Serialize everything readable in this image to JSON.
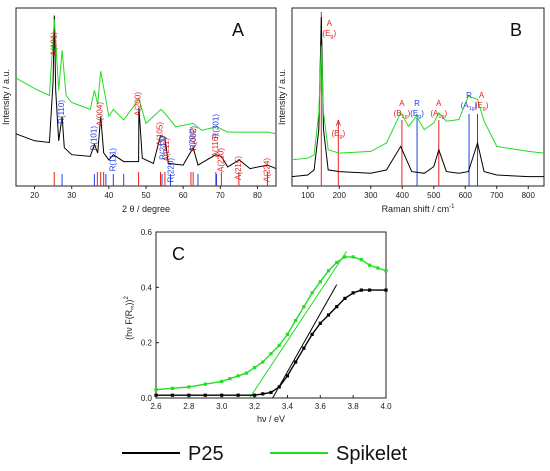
{
  "colors": {
    "p25": "#000000",
    "spikelet": "#22dd22",
    "anatase": "#e8201b",
    "rutile": "#1f3fe0",
    "fit": "#22dd22"
  },
  "legend": [
    {
      "label": "P25",
      "color": "#000000"
    },
    {
      "label": "Spikelet",
      "color": "#22dd22"
    }
  ],
  "chart_data": [
    {
      "type": "line",
      "panel": "A",
      "xlabel": "2 θ / degree",
      "ylabel": "Intensity / a.u.",
      "xlim": [
        15,
        85
      ],
      "xticks": [
        20,
        30,
        40,
        50,
        60,
        70,
        80
      ],
      "series": [
        {
          "name": "P25",
          "x": [
            15,
            20,
            24,
            25.0,
            25.3,
            25.7,
            26.5,
            27.4,
            28,
            30,
            35,
            36.1,
            37,
            37.8,
            38.6,
            40,
            41.2,
            44,
            48,
            48.1,
            49,
            52,
            53.9,
            55.1,
            56,
            60,
            62.7,
            64,
            68.8,
            70.3,
            72,
            75.1,
            78,
            82.7,
            85
          ],
          "y": [
            0.3,
            0.26,
            0.25,
            0.6,
            0.98,
            0.55,
            0.26,
            0.4,
            0.22,
            0.18,
            0.17,
            0.24,
            0.19,
            0.4,
            0.19,
            0.15,
            0.18,
            0.14,
            0.14,
            0.45,
            0.16,
            0.13,
            0.29,
            0.28,
            0.13,
            0.12,
            0.22,
            0.12,
            0.18,
            0.17,
            0.11,
            0.15,
            0.1,
            0.12,
            0.1
          ]
        },
        {
          "name": "Spikelet",
          "x": [
            15,
            20,
            24,
            25.3,
            26.5,
            27.4,
            28.5,
            30,
            35,
            36.1,
            37,
            37.8,
            40,
            41.2,
            44,
            48.1,
            50,
            54,
            55,
            58,
            62.7,
            65,
            69,
            72,
            75,
            82.7,
            85
          ],
          "y": [
            0.62,
            0.56,
            0.52,
            0.96,
            0.55,
            0.78,
            0.52,
            0.48,
            0.44,
            0.55,
            0.47,
            0.66,
            0.4,
            0.44,
            0.38,
            0.5,
            0.36,
            0.44,
            0.42,
            0.34,
            0.36,
            0.32,
            0.34,
            0.31,
            0.31,
            0.31,
            0.3
          ]
        }
      ],
      "ref_lines": {
        "anatase": [
          25.3,
          36.9,
          37.8,
          38.6,
          48.0,
          53.9,
          55.1,
          62.1,
          62.7,
          68.8,
          70.3,
          75.0,
          82.7
        ],
        "rutile": [
          27.4,
          36.1,
          39.2,
          41.2,
          44.0,
          54.3,
          56.6,
          64.0,
          69.0
        ]
      },
      "peak_labels": [
        {
          "text": "A(101)",
          "x": 25.3,
          "phase": "anatase"
        },
        {
          "text": "R(110)",
          "x": 27.4,
          "phase": "rutile"
        },
        {
          "text": "R(101)",
          "x": 36.1,
          "phase": "rutile"
        },
        {
          "text": "A(004)",
          "x": 37.8,
          "phase": "anatase"
        },
        {
          "text": "R(111)",
          "x": 41.2,
          "phase": "rutile"
        },
        {
          "text": "A(200)",
          "x": 48.0,
          "phase": "anatase"
        },
        {
          "text": "A(105)",
          "x": 53.9,
          "phase": "anatase"
        },
        {
          "text": "R(211)",
          "x": 54.7,
          "phase": "rutile"
        },
        {
          "text": "A(211)",
          "x": 55.6,
          "phase": "anatase"
        },
        {
          "text": "R(220)",
          "x": 56.8,
          "phase": "rutile"
        },
        {
          "text": "A(204)",
          "x": 62.7,
          "phase": "anatase"
        },
        {
          "text": "R(002)",
          "x": 62.9,
          "phase": "rutile"
        },
        {
          "text": "R(301)",
          "x": 69.0,
          "phase": "rutile"
        },
        {
          "text": "A(116)",
          "x": 68.8,
          "phase": "anatase"
        },
        {
          "text": "A(220)",
          "x": 70.3,
          "phase": "anatase"
        },
        {
          "text": "A(215)",
          "x": 75.0,
          "phase": "anatase"
        },
        {
          "text": "A(224)",
          "x": 82.7,
          "phase": "anatase"
        }
      ]
    },
    {
      "type": "line",
      "panel": "B",
      "xlabel": "Raman shift / cm",
      "xlabel_sup": "-1",
      "ylabel": "Intensity / a.u.",
      "xlim": [
        50,
        850
      ],
      "xticks": [
        100,
        200,
        300,
        400,
        500,
        600,
        700,
        800
      ],
      "series": [
        {
          "name": "P25",
          "x": [
            50,
            100,
            120,
            135,
            143,
            150,
            165,
            200,
            300,
            350,
            395,
            430,
            470,
            500,
            516,
            540,
            580,
            610,
            639,
            660,
            700,
            800,
            850
          ],
          "y": [
            0.02,
            0.03,
            0.06,
            0.3,
            0.97,
            0.3,
            0.06,
            0.05,
            0.04,
            0.06,
            0.2,
            0.05,
            0.04,
            0.08,
            0.18,
            0.05,
            0.04,
            0.05,
            0.22,
            0.05,
            0.03,
            0.02,
            0.02
          ]
        },
        {
          "name": "Spikelet",
          "x": [
            50,
            100,
            120,
            135,
            143,
            150,
            165,
            200,
            300,
            350,
            395,
            420,
            445,
            470,
            500,
            516,
            540,
            580,
            610,
            639,
            660,
            700,
            800,
            850
          ],
          "y": [
            0.12,
            0.13,
            0.15,
            0.4,
            0.8,
            0.4,
            0.18,
            0.16,
            0.17,
            0.22,
            0.4,
            0.32,
            0.38,
            0.3,
            0.34,
            0.4,
            0.35,
            0.36,
            0.5,
            0.48,
            0.35,
            0.2,
            0.17,
            0.16
          ]
        }
      ],
      "ref_lines": {
        "anatase": [
          143,
          197,
          399,
          516
        ],
        "rutile": [
          447,
          612,
          639
        ]
      },
      "peak_labels": [
        {
          "line1": "A",
          "line2": "(E",
          "sub": "g",
          "x": 143,
          "phase": "anatase"
        },
        {
          "line1": "A",
          "line2": "(E",
          "sub": "g",
          "x": 197,
          "phase": "anatase"
        },
        {
          "line1": "A",
          "line2": "(B",
          "sub": "1g",
          "x": 399,
          "phase": "anatase"
        },
        {
          "line1": "R",
          "line2": "(E",
          "sub": "g",
          "x": 447,
          "phase": "rutile"
        },
        {
          "line1": "A",
          "line2": "(A",
          "sub": "1g",
          "x": 516,
          "phase": "anatase"
        },
        {
          "line1": "R",
          "line2": "(A",
          "sub": "1g",
          "x": 612,
          "phase": "rutile"
        },
        {
          "line1": "A",
          "line2": "(E",
          "sub": "g",
          "x": 639,
          "phase": "anatase"
        }
      ]
    },
    {
      "type": "line",
      "panel": "C",
      "xlabel": "hν / eV",
      "ylabel_main": "(hν F(R",
      "ylabel_inf": "∞",
      "ylabel_end": "))",
      "ylabel_sup": "2",
      "xlim": [
        2.6,
        4.0
      ],
      "ylim": [
        0,
        0.6
      ],
      "xticks": [
        2.6,
        2.8,
        3.0,
        3.2,
        3.4,
        3.6,
        3.8,
        4.0
      ],
      "yticks": [
        0.0,
        0.2,
        0.4,
        0.6
      ],
      "series": [
        {
          "name": "P25",
          "x": [
            2.6,
            2.7,
            2.8,
            2.9,
            3.0,
            3.1,
            3.2,
            3.25,
            3.3,
            3.35,
            3.4,
            3.45,
            3.5,
            3.55,
            3.6,
            3.65,
            3.7,
            3.75,
            3.8,
            3.85,
            3.9,
            4.0
          ],
          "y": [
            0.01,
            0.01,
            0.01,
            0.01,
            0.01,
            0.01,
            0.01,
            0.015,
            0.02,
            0.04,
            0.08,
            0.13,
            0.18,
            0.23,
            0.27,
            0.3,
            0.33,
            0.36,
            0.38,
            0.39,
            0.39,
            0.39
          ]
        },
        {
          "name": "Spikelet",
          "x": [
            2.6,
            2.7,
            2.8,
            2.9,
            3.0,
            3.05,
            3.1,
            3.15,
            3.2,
            3.25,
            3.3,
            3.35,
            3.4,
            3.45,
            3.5,
            3.55,
            3.6,
            3.65,
            3.7,
            3.75,
            3.8,
            3.85,
            3.9,
            3.95,
            4.0
          ],
          "y": [
            0.03,
            0.035,
            0.04,
            0.05,
            0.06,
            0.07,
            0.08,
            0.09,
            0.11,
            0.13,
            0.16,
            0.19,
            0.23,
            0.28,
            0.33,
            0.38,
            0.42,
            0.46,
            0.49,
            0.51,
            0.51,
            0.5,
            0.48,
            0.47,
            0.46
          ]
        }
      ],
      "tangents": [
        {
          "name": "P25",
          "x": [
            3.31,
            3.7
          ],
          "y": [
            0.0,
            0.41
          ]
        },
        {
          "name": "Spikelet",
          "x": [
            3.17,
            3.76
          ],
          "y": [
            0.0,
            0.53
          ]
        }
      ]
    }
  ]
}
